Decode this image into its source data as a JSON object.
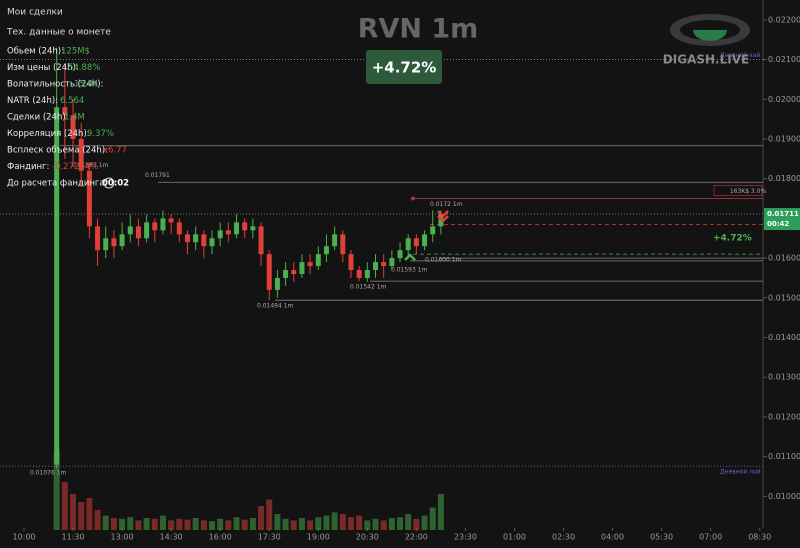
{
  "menu": [
    "Мои сделки",
    "Тех. данные о монете"
  ],
  "stats": [
    {
      "label": "Обьем (24h):",
      "value": "125M$"
    },
    {
      "label": "Изм цены  (24h):",
      "value": "54.88%"
    },
    {
      "label": "Волатильность  (24h):",
      "value": "15.04"
    },
    {
      "label": "NATR (24h):",
      "value": "6.564"
    },
    {
      "label": "Сделки (24h):",
      "value": "1.4M"
    },
    {
      "label": "Корреляция (24h):",
      "value": "9.37%"
    },
    {
      "label": "Всплеск объема (24h):",
      "value": "x6.77"
    },
    {
      "label": "Фандинг:",
      "value": "-0.27234%"
    },
    {
      "label": "До расчета фандинга:",
      "value": "00:02"
    }
  ],
  "logo": "DIGASH.LIVE",
  "chart_data": {
    "type": "candlestick",
    "title": "RVN 1m",
    "change": "+4.72%",
    "x": [
      660,
      675,
      690,
      705,
      720,
      735,
      750,
      765,
      780,
      795,
      810,
      825,
      840,
      855,
      870,
      885,
      900,
      915,
      930,
      945,
      960,
      975,
      990,
      1005,
      1020,
      1035,
      1050,
      1065,
      1080,
      1095,
      1110,
      1125,
      1140,
      1155,
      1170,
      1185,
      1200,
      1215,
      1230,
      1245,
      1260,
      1275,
      1290,
      1305,
      1320,
      1335,
      1350,
      1365
    ],
    "open": [
      0.0108,
      0.0198,
      0.0196,
      0.019,
      0.0182,
      0.0168,
      0.0162,
      0.0165,
      0.0163,
      0.0166,
      0.0168,
      0.0165,
      0.0169,
      0.0167,
      0.017,
      0.0169,
      0.0166,
      0.0164,
      0.0166,
      0.0163,
      0.0165,
      0.0167,
      0.0166,
      0.0169,
      0.0167,
      0.0168,
      0.0161,
      0.0152,
      0.0155,
      0.0157,
      0.0156,
      0.0159,
      0.0158,
      0.0161,
      0.0163,
      0.0166,
      0.0161,
      0.0157,
      0.0155,
      0.0157,
      0.0159,
      0.0158,
      0.016,
      0.0162,
      0.0165,
      0.0163,
      0.0166,
      0.0168
    ],
    "high": [
      0.0213,
      0.0209,
      0.02,
      0.0194,
      0.0184,
      0.017,
      0.0168,
      0.0167,
      0.0169,
      0.0171,
      0.017,
      0.0171,
      0.017,
      0.0172,
      0.0171,
      0.017,
      0.0167,
      0.0168,
      0.0167,
      0.0167,
      0.0169,
      0.0169,
      0.0171,
      0.017,
      0.017,
      0.0169,
      0.0162,
      0.0157,
      0.0159,
      0.0159,
      0.0161,
      0.0161,
      0.0163,
      0.0166,
      0.0168,
      0.0167,
      0.0162,
      0.0158,
      0.0159,
      0.0161,
      0.0161,
      0.0162,
      0.0164,
      0.0166,
      0.0166,
      0.0167,
      0.0172,
      0.0172
    ],
    "low": [
      0.0107,
      0.0185,
      0.0184,
      0.0178,
      0.0165,
      0.0158,
      0.016,
      0.016,
      0.0162,
      0.0164,
      0.0163,
      0.0164,
      0.0164,
      0.0166,
      0.0166,
      0.0164,
      0.0161,
      0.0162,
      0.016,
      0.0161,
      0.0163,
      0.0164,
      0.0165,
      0.0165,
      0.0165,
      0.0158,
      0.01494,
      0.015,
      0.0153,
      0.0154,
      0.0155,
      0.0156,
      0.0157,
      0.0159,
      0.0162,
      0.0159,
      0.0155,
      0.01542,
      0.0154,
      0.0155,
      0.0155,
      0.0157,
      0.0159,
      0.016,
      0.0161,
      0.0162,
      0.0164,
      0.0166
    ],
    "close": [
      0.0198,
      0.0196,
      0.019,
      0.0182,
      0.0168,
      0.0162,
      0.0165,
      0.0163,
      0.0166,
      0.0168,
      0.0165,
      0.0169,
      0.0167,
      0.017,
      0.0169,
      0.0166,
      0.0164,
      0.0166,
      0.0163,
      0.0165,
      0.0167,
      0.0166,
      0.0169,
      0.0167,
      0.0168,
      0.0161,
      0.0152,
      0.0155,
      0.0157,
      0.0156,
      0.0159,
      0.0158,
      0.0161,
      0.0163,
      0.0166,
      0.0161,
      0.0157,
      0.0155,
      0.0157,
      0.0159,
      0.0158,
      0.016,
      0.0162,
      0.0165,
      0.0163,
      0.0166,
      0.0168,
      0.01711
    ],
    "volume": [
      100,
      60,
      45,
      35,
      40,
      25,
      18,
      15,
      14,
      16,
      12,
      15,
      14,
      18,
      12,
      14,
      13,
      15,
      12,
      11,
      14,
      12,
      16,
      13,
      15,
      30,
      38,
      20,
      14,
      12,
      15,
      12,
      16,
      18,
      22,
      20,
      16,
      18,
      12,
      14,
      12,
      15,
      16,
      20,
      14,
      18,
      28,
      45
    ],
    "up_color": "#4caf50",
    "down_color": "#e0403a",
    "xlim": [
      556,
      1956
    ],
    "xticks": [
      {
        "value": 600,
        "label": "10:00"
      },
      {
        "value": 690,
        "label": "11:30"
      },
      {
        "value": 780,
        "label": "13:00"
      },
      {
        "value": 870,
        "label": "14:30"
      },
      {
        "value": 960,
        "label": "16:00"
      },
      {
        "value": 1050,
        "label": "17:30"
      },
      {
        "value": 1140,
        "label": "19:00"
      },
      {
        "value": 1230,
        "label": "20:30"
      },
      {
        "value": 1320,
        "label": "22:00"
      },
      {
        "value": 1410,
        "label": "23:30"
      },
      {
        "value": 1500,
        "label": "01:00"
      },
      {
        "value": 1590,
        "label": "02:30"
      },
      {
        "value": 1680,
        "label": "04:00"
      },
      {
        "value": 1770,
        "label": "05:30"
      },
      {
        "value": 1860,
        "label": "07:00"
      },
      {
        "value": 1950,
        "label": "08:30"
      }
    ],
    "ylim": [
      0.0087,
      0.0225
    ],
    "yticks": [
      {
        "value": 0.022,
        "label": "0.02200"
      },
      {
        "value": 0.021,
        "label": "0.02100"
      },
      {
        "value": 0.02,
        "label": "0.02000"
      },
      {
        "value": 0.019,
        "label": "0.01900"
      },
      {
        "value": 0.018,
        "label": "0.01800"
      },
      {
        "value": 0.017,
        "label": "0.01700"
      },
      {
        "value": 0.016,
        "label": "0.01600"
      },
      {
        "value": 0.015,
        "label": "0.01500"
      },
      {
        "value": 0.014,
        "label": "0.01400"
      },
      {
        "value": 0.013,
        "label": "0.01300"
      },
      {
        "value": 0.012,
        "label": "0.01200"
      },
      {
        "value": 0.011,
        "label": "0.01100"
      },
      {
        "value": 0.01,
        "label": "0.01000"
      }
    ],
    "vlim": [
      0,
      100
    ],
    "levels": [
      {
        "value": 0.021,
        "label": "Дневной хай"
      },
      {
        "value": 0.01883,
        "label": "0.01883 1m"
      },
      {
        "value": 0.01791,
        "label": "0.01791"
      },
      {
        "value": 0.01494,
        "label": "0.01494 1m"
      },
      {
        "value": 0.01542,
        "label": "0.01542 1m"
      },
      {
        "value": 0.01593,
        "label": "0.01593 1m"
      },
      {
        "value": 0.016,
        "label": "0.01600 1m"
      },
      {
        "value": 0.0175,
        "label": "163K$  3.0%"
      },
      {
        "value": 0.0172,
        "label": "0.0172 1m"
      },
      {
        "value": 0.01076,
        "label": "0.01076 1m"
      },
      {
        "value": 0.01076,
        "label": "Дневной лой"
      },
      {
        "value": 0.01685
      },
      {
        "value": 0.0161
      }
    ],
    "current_price": {
      "value": 0.01711,
      "label": "0.01711"
    },
    "timer": "00:42"
  }
}
